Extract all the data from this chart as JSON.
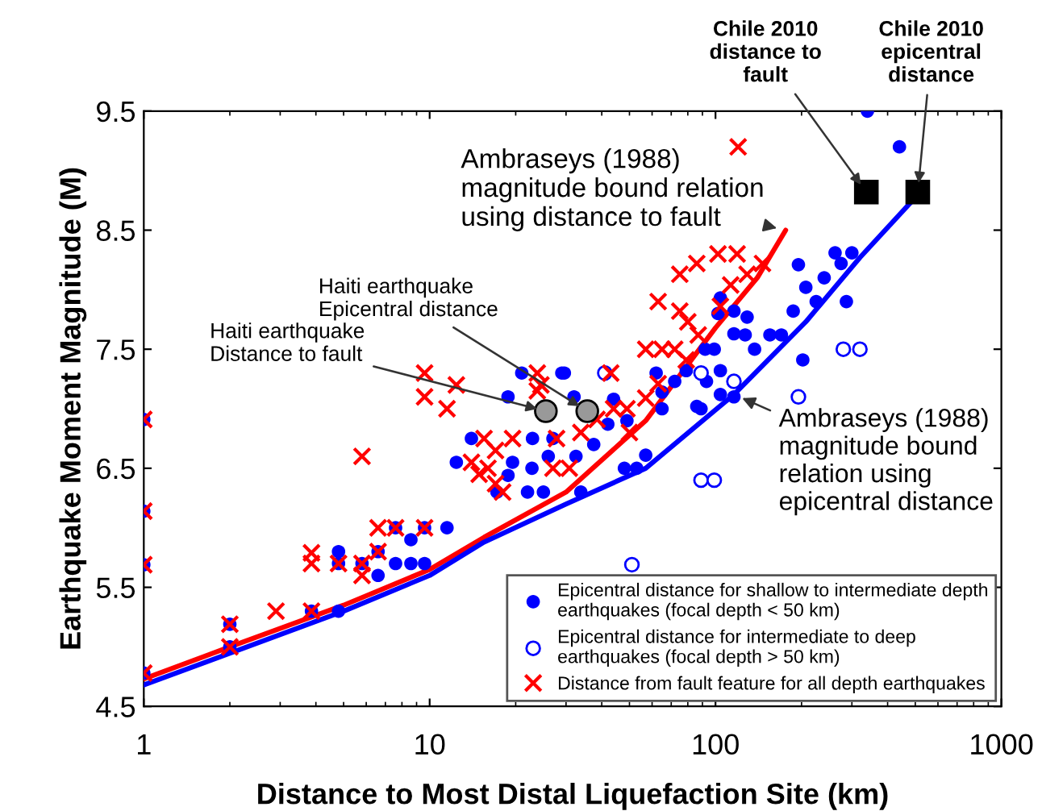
{
  "chart_data": {
    "type": "scatter",
    "xlabel": "Distance to Most Distal Liquefaction Site (km)",
    "ylabel": "Earthquake Moment Magnitude (M)",
    "log": "x",
    "xlim": [
      1,
      1000
    ],
    "xticks": [
      1,
      10,
      100,
      1000
    ],
    "ylim": [
      4.5,
      9.5
    ],
    "yticks": [
      4.5,
      5.5,
      6.5,
      7.5,
      8.5,
      9.5
    ],
    "grid": false,
    "legend": "bottom right",
    "series": [
      {
        "name": "Epicentral distance for shallow to intermediate depth\nearthquakes (focal depth < 50 km)",
        "marker": "circle",
        "color": "#0000ff",
        "x": [
          1,
          1,
          1,
          1,
          2,
          2,
          3.86,
          4.8,
          4.8,
          4.8,
          5.8,
          6.6,
          6.6,
          7.6,
          7.6,
          8.6,
          8.6,
          9.6,
          9.6,
          11.5,
          12.4,
          14,
          17.2,
          19.5,
          18.8,
          18.8,
          21,
          22.9,
          22.8,
          22,
          25,
          26,
          27,
          29,
          29.6,
          32,
          32.5,
          33.8,
          37.5,
          42,
          44,
          48,
          49,
          53,
          57,
          62,
          65,
          65,
          72,
          79,
          86,
          89,
          92,
          93,
          99,
          102,
          104,
          104,
          104,
          116,
          116,
          116,
          127,
          129,
          137,
          155,
          170,
          187,
          195,
          202,
          207,
          225,
          240,
          262,
          275,
          287,
          300,
          340,
          440
        ],
        "values": [
          6.91,
          6.14,
          5.69,
          4.78,
          5.19,
          5.0,
          5.3,
          5.3,
          5.8,
          5.7,
          5.7,
          5.6,
          5.8,
          6.0,
          5.7,
          5.9,
          5.7,
          6.0,
          5.7,
          6.0,
          6.55,
          6.75,
          6.3,
          6.55,
          7.1,
          6.44,
          7.3,
          6.75,
          6.5,
          6.3,
          6.3,
          6.6,
          6.75,
          7.3,
          7.3,
          7.1,
          6.6,
          6.3,
          6.7,
          6.87,
          7.08,
          6.5,
          6.9,
          6.5,
          6.61,
          7.3,
          7.0,
          7.14,
          7.23,
          7.32,
          7.02,
          7.0,
          7.5,
          7.23,
          7.5,
          7.8,
          7.93,
          7.32,
          7.12,
          7.82,
          7.63,
          7.1,
          7.62,
          7.77,
          7.5,
          7.62,
          7.62,
          7.82,
          8.21,
          7.41,
          8.02,
          7.9,
          8.1,
          8.31,
          8.22,
          7.9,
          8.31,
          9.5,
          9.2
        ]
      },
      {
        "name": "Epicentral distance for intermediate to deep\nearthquakes (focal depth > 50 km)",
        "marker": "circle",
        "color": "#ffffff",
        "x": [
          41,
          51,
          89,
          89,
          99,
          116,
          195,
          280,
          320
        ],
        "values": [
          7.3,
          5.69,
          6.4,
          7.3,
          6.4,
          7.23,
          7.1,
          7.5,
          7.5
        ]
      },
      {
        "name": "Distance from fault feature for all depth earthquakes",
        "marker": "cross",
        "color": "#ff0000",
        "x": [
          1,
          1,
          1,
          1,
          2,
          2,
          2.9,
          3.86,
          3.86,
          3.86,
          4.8,
          5.8,
          5.8,
          5.8,
          6.6,
          6.6,
          7.6,
          9.6,
          9.6,
          9.6,
          11.5,
          12.4,
          14,
          14.9,
          15.5,
          16,
          17,
          17,
          18,
          19.5,
          23.8,
          23.8,
          24.5,
          27,
          27.8,
          30.8,
          33.8,
          38.5,
          43,
          44,
          49,
          50,
          57,
          57,
          63,
          63,
          65,
          72,
          75,
          75,
          79,
          80,
          86,
          87,
          102,
          104,
          113,
          119,
          120,
          129,
          146
        ],
        "values": [
          6.91,
          6.14,
          5.69,
          4.78,
          5.19,
          5.0,
          5.3,
          5.3,
          5.79,
          5.7,
          5.7,
          5.7,
          5.6,
          6.6,
          5.8,
          6.0,
          6.0,
          6.0,
          7.3,
          7.1,
          7.0,
          7.2,
          6.55,
          6.45,
          6.75,
          6.5,
          6.65,
          6.37,
          6.3,
          6.75,
          7.3,
          7.15,
          7.2,
          6.5,
          6.75,
          6.5,
          6.8,
          6.91,
          7.3,
          7.0,
          7.0,
          6.8,
          7.5,
          7.09,
          7.9,
          7.21,
          7.5,
          7.5,
          8.13,
          7.82,
          7.41,
          7.73,
          8.22,
          7.62,
          8.3,
          7.86,
          8.04,
          8.3,
          9.2,
          8.13,
          8.22
        ]
      },
      {
        "type": "line",
        "color": "#ff0000",
        "x": [
          1,
          2,
          5,
          10,
          15.5,
          30,
          57,
          100,
          140,
          176
        ],
        "values": [
          4.73,
          5.0,
          5.35,
          5.65,
          5.92,
          6.3,
          6.9,
          7.68,
          8.1,
          8.5
        ]
      },
      {
        "type": "line",
        "color": "#0000ff",
        "x": [
          1,
          5,
          10,
          15.5,
          30,
          57,
          116,
          207,
          320,
          485
        ],
        "values": [
          4.68,
          5.3,
          5.6,
          5.88,
          6.2,
          6.5,
          7.12,
          7.73,
          8.27,
          8.74
        ]
      },
      {
        "marker": "square",
        "color": "#000000",
        "x": [
          337,
          510
        ],
        "values": [
          8.82,
          8.82
        ]
      },
      {
        "marker": "circle",
        "color": "#999999",
        "x": [
          25.5,
          35.6
        ],
        "values": [
          6.98,
          6.98
        ]
      }
    ],
    "annotations": [
      {
        "text": "Chile 2010\ndistance to\nfault",
        "x": 337,
        "y": 8.82
      },
      {
        "text": "Chile 2010\nepicentral\ndistance",
        "x": 510,
        "y": 8.82
      },
      {
        "text": "Ambraseys (1988)\nmagnitude bound relation\nusing distance to fault",
        "x": 176,
        "y": 8.5
      },
      {
        "text": "Haiti earthquake\nEpicentral distance",
        "x": 35.6,
        "y": 6.98
      },
      {
        "text": "Haiti earthquake\nDistance to fault",
        "x": 25.5,
        "y": 6.98
      },
      {
        "text": "Ambraseys (1988)\nmagnitude bound\nrelation using\nepicentral distance",
        "x": 116,
        "y": 7.12
      }
    ]
  }
}
